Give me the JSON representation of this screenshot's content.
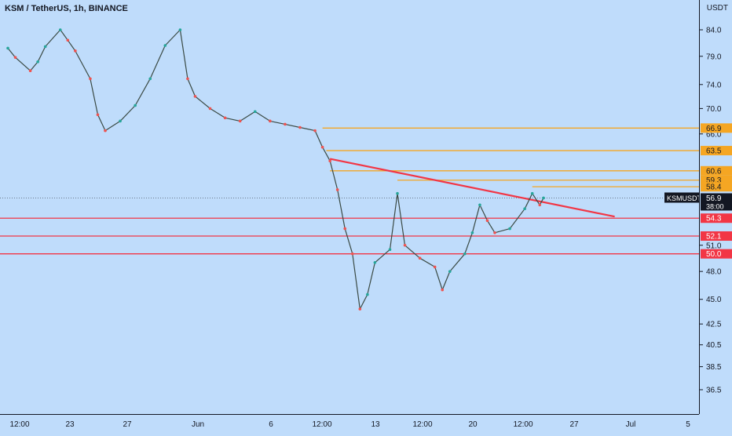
{
  "header": {
    "title": "KSM / TetherUS, 1h, BINANCE",
    "currency": "USDT"
  },
  "colors": {
    "background": "#bfdcfb",
    "candle_up": "#26a69a",
    "candle_down": "#ef5350",
    "resistance": "#f5a623",
    "support": "#f23645",
    "trendline": "#f23645",
    "axis_text": "#131722"
  },
  "price_axis": {
    "ticks": [
      "84.0",
      "79.0",
      "74.0",
      "70.0",
      "66.0",
      "51.0",
      "48.0",
      "45.0",
      "42.5",
      "40.5",
      "38.5",
      "36.5"
    ]
  },
  "time_axis": {
    "ticks": [
      "12:00",
      "23",
      "27",
      "Jun",
      "6",
      "12:00",
      "13",
      "12:00",
      "20",
      "12:00",
      "27",
      "Jul",
      "5"
    ]
  },
  "symbol_tag": {
    "symbol": "KSMUSDT",
    "price": "56.9",
    "countdown": "38:00"
  },
  "chart_data": {
    "type": "line",
    "title": "KSM / TetherUS, 1h, BINANCE",
    "xlabel": "",
    "ylabel": "USDT",
    "ylim": [
      34.5,
      90
    ],
    "y_scale": "log",
    "grid": false,
    "legend": "none",
    "x_range": [
      "May 20 12:00",
      "Jul 5"
    ],
    "resistance_levels": [
      66.9,
      63.5,
      60.6,
      59.3,
      58.4
    ],
    "support_levels": [
      54.3,
      52.1,
      50.0
    ],
    "current_price": 56.9,
    "trendline": {
      "from": {
        "x": "Jun 11 00:00",
        "y": 62.3
      },
      "to": {
        "x": "Jun 30 00:00",
        "y": 54.5
      }
    },
    "series": [
      {
        "values": [
          {
            "x": "May 20 12:00",
            "y": 80.5
          },
          {
            "x": "May 21",
            "y": 78.8
          },
          {
            "x": "May 22",
            "y": 76.4
          },
          {
            "x": "May 22 12:00",
            "y": 78.0
          },
          {
            "x": "May 23",
            "y": 80.8
          },
          {
            "x": "May 24",
            "y": 84.0
          },
          {
            "x": "May 24 12:00",
            "y": 82.0
          },
          {
            "x": "May 25",
            "y": 80.0
          },
          {
            "x": "May 26",
            "y": 75.0
          },
          {
            "x": "May 26 12:00",
            "y": 69.0
          },
          {
            "x": "May 27",
            "y": 66.5
          },
          {
            "x": "May 28",
            "y": 68.0
          },
          {
            "x": "May 29",
            "y": 70.5
          },
          {
            "x": "May 30",
            "y": 75.0
          },
          {
            "x": "May 31",
            "y": 81.0
          },
          {
            "x": "Jun 1",
            "y": 84.0
          },
          {
            "x": "Jun 1 12:00",
            "y": 75.0
          },
          {
            "x": "Jun 2",
            "y": 72.0
          },
          {
            "x": "Jun 3",
            "y": 70.0
          },
          {
            "x": "Jun 4",
            "y": 68.5
          },
          {
            "x": "Jun 5",
            "y": 68.0
          },
          {
            "x": "Jun 6",
            "y": 69.5
          },
          {
            "x": "Jun 7",
            "y": 68.0
          },
          {
            "x": "Jun 8",
            "y": 67.5
          },
          {
            "x": "Jun 9",
            "y": 67.0
          },
          {
            "x": "Jun 10",
            "y": 66.5
          },
          {
            "x": "Jun 10 12:00",
            "y": 64.0
          },
          {
            "x": "Jun 11",
            "y": 62.0
          },
          {
            "x": "Jun 11 12:00",
            "y": 58.0
          },
          {
            "x": "Jun 12",
            "y": 53.0
          },
          {
            "x": "Jun 12 12:00",
            "y": 50.0
          },
          {
            "x": "Jun 13",
            "y": 44.0
          },
          {
            "x": "Jun 13 12:00",
            "y": 45.5
          },
          {
            "x": "Jun 14",
            "y": 49.0
          },
          {
            "x": "Jun 15",
            "y": 50.5
          },
          {
            "x": "Jun 15 12:00",
            "y": 57.5
          },
          {
            "x": "Jun 16",
            "y": 51.0
          },
          {
            "x": "Jun 17",
            "y": 49.5
          },
          {
            "x": "Jun 18",
            "y": 48.5
          },
          {
            "x": "Jun 18 12:00",
            "y": 46.0
          },
          {
            "x": "Jun 19",
            "y": 48.0
          },
          {
            "x": "Jun 20",
            "y": 50.0
          },
          {
            "x": "Jun 20 12:00",
            "y": 52.5
          },
          {
            "x": "Jun 21",
            "y": 56.0
          },
          {
            "x": "Jun 21 12:00",
            "y": 54.0
          },
          {
            "x": "Jun 22",
            "y": 52.5
          },
          {
            "x": "Jun 23",
            "y": 53.0
          },
          {
            "x": "Jun 24",
            "y": 55.5
          },
          {
            "x": "Jun 24 12:00",
            "y": 57.5
          },
          {
            "x": "Jun 25",
            "y": 56.0
          },
          {
            "x": "Jun 25 06:00",
            "y": 56.9
          }
        ]
      }
    ]
  }
}
